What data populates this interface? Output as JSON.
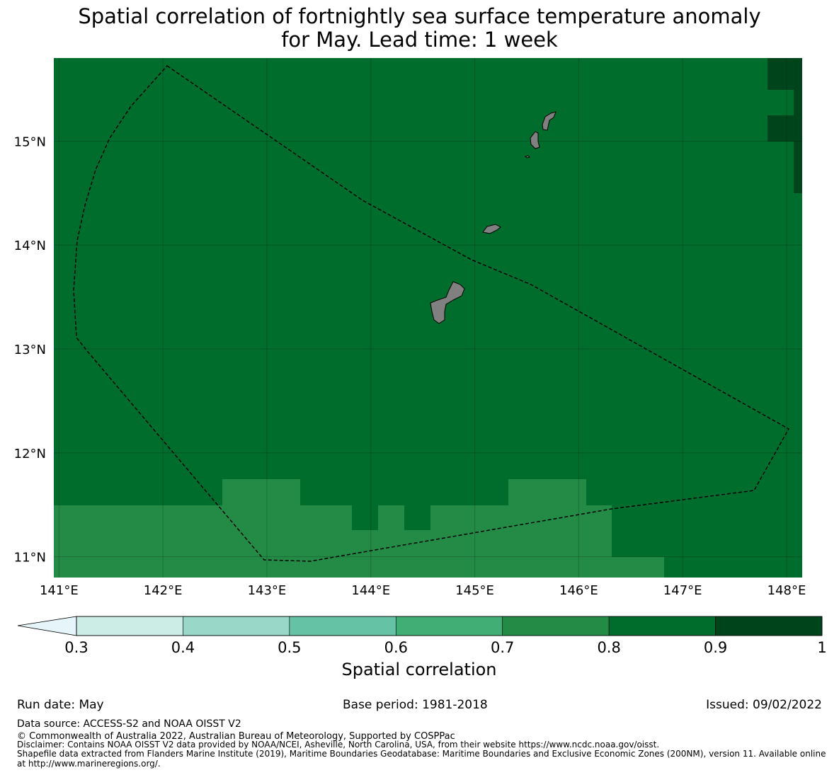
{
  "title_line1": "Spatial correlation of fortnightly sea surface temperature anomaly",
  "title_line2": "for May. Lead time: 1 week",
  "map": {
    "lon_ticks": [
      "141°E",
      "142°E",
      "143°E",
      "144°E",
      "145°E",
      "146°E",
      "147°E",
      "148°E"
    ],
    "lat_ticks": [
      "15°N",
      "14°N",
      "13°N",
      "12°N",
      "11°N"
    ],
    "lon_values": [
      141,
      142,
      143,
      144,
      145,
      146,
      147,
      148
    ],
    "lat_values": [
      15,
      14,
      13,
      12,
      11
    ],
    "lon_range": [
      140.95,
      148.15
    ],
    "lat_range": [
      10.8,
      15.8
    ],
    "background_value_range": "0.8-0.9",
    "cells_0_9_to_1": [
      [
        148.1,
        15.5
      ],
      [
        148.1,
        15.0
      ],
      [
        148.1,
        14.75
      ],
      [
        148.1,
        15.25
      ],
      [
        148.1,
        15.75
      ],
      [
        148.1,
        14.5
      ]
    ],
    "island_color": "#808080",
    "boundary_style": "dashed"
  },
  "colorbar": {
    "title": "Spatial correlation",
    "tick_labels": [
      "0.3",
      "0.4",
      "0.5",
      "0.6",
      "0.7",
      "0.8",
      "0.9",
      "1"
    ],
    "colors": [
      "#e5f5f9",
      "#ccece6",
      "#99d8c9",
      "#66c2a4",
      "#41ae76",
      "#238b45",
      "#006d2c",
      "#00441b"
    ]
  },
  "footer": {
    "run_date": "Run date: May",
    "base_period": "Base period: 1981-2018",
    "issued": "Issued: 09/02/2022",
    "data_source": "Data source: ACCESS-S2 and NOAA OISST V2",
    "copyright": "© Commonwealth of Australia 2022, Australian Bureau of Meteorology, Supported by COSPPac",
    "disclaimer": "Disclaimer: Contains NOAA OISST V2 data provided by NOAA/NCEI, Asheville, North Carolina, USA, from their website https://www.ncdc.noaa.gov/oisst.",
    "shapefile_line1": "Shapefile data extracted from Flanders Marine Institute (2019), Maritime Boundaries Geodatabase: Maritime Boundaries and Exclusive Economic Zones (200NM), version 11. Available online",
    "shapefile_line2": "at http://www.marineregions.org/."
  }
}
